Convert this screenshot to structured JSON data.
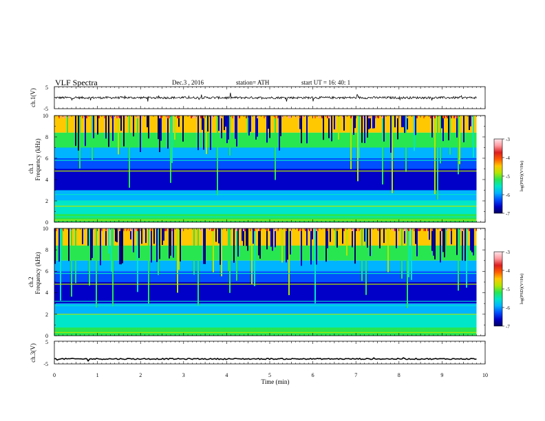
{
  "header": {
    "title": "VLF  Spectra",
    "date": "Dec.3  , 2016",
    "station": "station= ATH",
    "start": "start  UT  =    16: 40: 1"
  },
  "chart_data": [
    {
      "type": "line",
      "panel": "ch1-waveform",
      "ylabel": "ch.1(V)",
      "yticks": [
        "5",
        "-5"
      ],
      "ylim": [
        -5,
        5
      ],
      "xlim": [
        0,
        10
      ],
      "approx_level": 0.0,
      "approx_noise": 0.5,
      "data_end_min": 9.8,
      "color": "#000000"
    },
    {
      "type": "heatmap",
      "panel": "ch1-spectrogram",
      "ylabel": "ch.1\nFrequency  (kHz)",
      "ylabel_line1": "ch.1",
      "ylabel_line2": "Frequency  (kHz)",
      "yticks": [
        "0",
        "2",
        "4",
        "6",
        "8",
        "10"
      ],
      "ylim": [
        0,
        10
      ],
      "xlim": [
        0,
        10
      ],
      "data_end_min": 9.8,
      "colorbar": {
        "label": "log(PSD)(V²/Hz)",
        "ticks": [
          "-3",
          "-4",
          "-5",
          "-6",
          "-7"
        ],
        "range": [
          -7,
          -3
        ]
      },
      "bands_khz": [
        0.2,
        0.5,
        0.8,
        1.5,
        2.0,
        2.6,
        4.8,
        5.8
      ]
    },
    {
      "type": "heatmap",
      "panel": "ch2-spectrogram",
      "ylabel": "ch.2\nFrequency  (kHz)",
      "ylabel_line1": "ch.2",
      "ylabel_line2": "Frequency  (kHz)",
      "yticks": [
        "0",
        "2",
        "4",
        "6",
        "8",
        "10"
      ],
      "ylim": [
        0,
        10
      ],
      "xlim": [
        0,
        10
      ],
      "data_end_min": 9.8,
      "colorbar": {
        "label": "log(PSD)(V²/Hz)",
        "ticks": [
          "-3",
          "-4",
          "-5",
          "-6",
          "-7"
        ],
        "range": [
          -7,
          -3
        ]
      },
      "bands_khz": [
        0.3,
        0.8,
        1.5,
        2.0,
        2.8,
        3.2,
        4.8,
        5.8
      ]
    },
    {
      "type": "line",
      "panel": "ch3-waveform",
      "ylabel": "ch.3(V)",
      "yticks": [
        "5",
        "-5"
      ],
      "ylim": [
        -5,
        5
      ],
      "xlim": [
        0,
        10
      ],
      "approx_level": -2.8,
      "approx_noise": 0.25,
      "data_end_min": 9.8,
      "color": "#000000",
      "xlabel": "Time  (min)",
      "xticks": [
        "0",
        "1",
        "2",
        "3",
        "4",
        "5",
        "6",
        "7",
        "8",
        "9",
        "10"
      ]
    }
  ],
  "colors": {
    "colormap": [
      "#000060",
      "#0000c8",
      "#0050ff",
      "#00b4ff",
      "#00e6c8",
      "#28e650",
      "#b4e600",
      "#ffc800",
      "#ff5a00",
      "#dc1e1e",
      "#ff9aa0",
      "#ffe6ea"
    ],
    "trace": "#000000",
    "frame": "#000000"
  }
}
